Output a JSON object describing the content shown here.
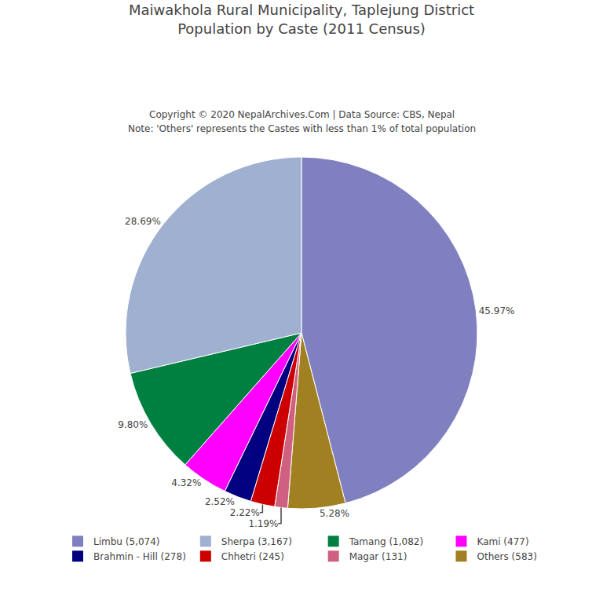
{
  "chart_data": {
    "type": "pie",
    "title": "Maiwakhola Rural Municipality, Taplejung District",
    "subtitle": "Population by Caste (2011 Census)",
    "annotations": [
      "Copyright © 2020 NepalArchives.Com | Data Source: CBS, Nepal",
      "Note: 'Others' represents the Castes with less than 1% of total population"
    ],
    "categories": [
      "Limbu (5,074)",
      "Others (583)",
      "Magar (131)",
      "Chhetri (245)",
      "Brahmin - Hill (278)",
      "Kami (477)",
      "Tamang (1,082)",
      "Sherpa (3,167)"
    ],
    "values": [
      45.97,
      5.28,
      1.19,
      2.22,
      2.52,
      4.32,
      9.8,
      28.69
    ],
    "value_labels": [
      "45.97%",
      "5.28%",
      "1.19%",
      "2.22%",
      "2.52%",
      "4.32%",
      "9.80%",
      "28.69%"
    ],
    "colors": [
      "#8080c0",
      "#a08020",
      "#d06080",
      "#cc0000",
      "#000080",
      "#ff00ff",
      "#008040",
      "#a0b0d0"
    ],
    "legend_entries": [
      "Limbu (5,074)",
      "Sherpa (3,167)",
      "Tamang (1,082)",
      "Kami (477)",
      "Brahmin - Hill (278)",
      "Chhetri (245)",
      "Magar (131)",
      "Others (583)"
    ],
    "legend": "bottom",
    "data_labels": true
  }
}
